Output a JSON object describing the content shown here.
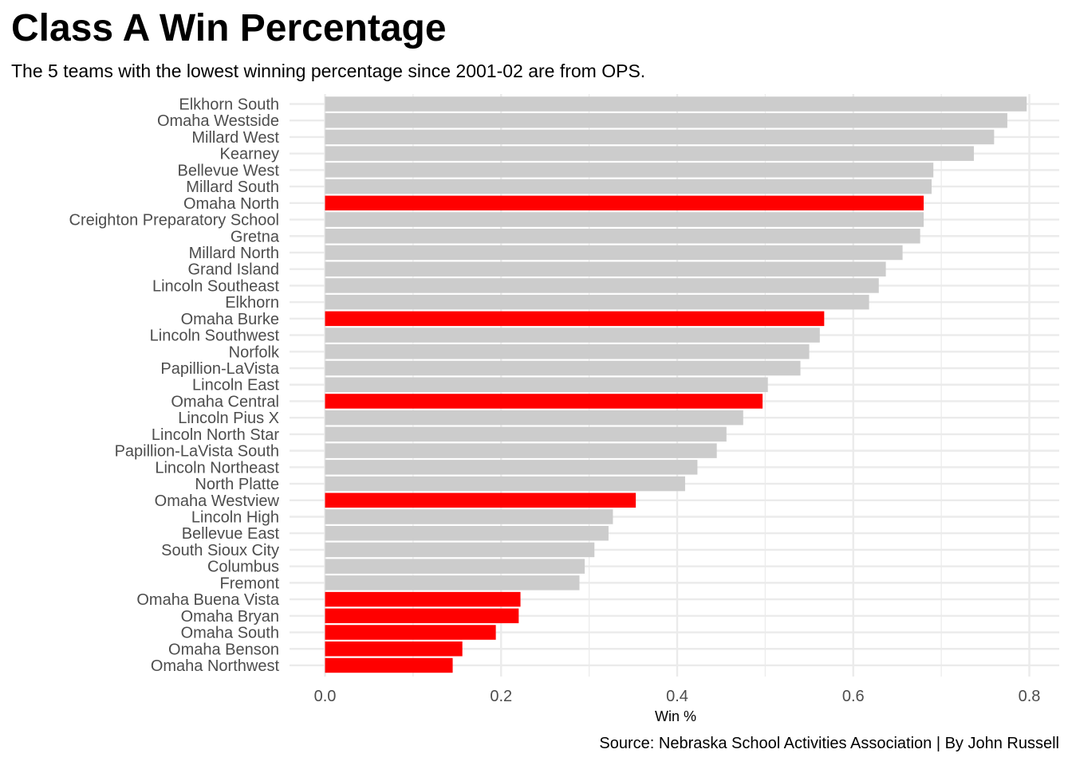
{
  "chart_data": {
    "type": "bar",
    "orientation": "horizontal",
    "title": "Class A Win Percentage",
    "subtitle": "The 5 teams with the lowest winning percentage since 2001-02 are from OPS.",
    "caption": "Source: Nebraska School Activities Association | By John Russell",
    "xlabel": "Win %",
    "ylabel": "",
    "xlim": [
      0,
      0.8
    ],
    "x_ticks": [
      "0.0",
      "0.2",
      "0.4",
      "0.6",
      "0.8"
    ],
    "grid": true,
    "legend": "none",
    "colors": {
      "highlight": "#ff0000",
      "default": "#cccccc",
      "grid": "#ebebeb"
    },
    "categories": [
      "Elkhorn South",
      "Omaha Westside",
      "Millard West",
      "Kearney",
      "Bellevue West",
      "Millard South",
      "Omaha North",
      "Creighton Preparatory School",
      "Gretna",
      "Millard North",
      "Grand Island",
      "Lincoln Southeast",
      "Elkhorn",
      "Omaha Burke",
      "Lincoln Southwest",
      "Norfolk",
      "Papillion-LaVista",
      "Lincoln East",
      "Omaha Central",
      "Lincoln Pius X",
      "Lincoln North Star",
      "Papillion-LaVista South",
      "Lincoln Northeast",
      "North Platte",
      "Omaha Westview",
      "Lincoln High",
      "Bellevue East",
      "South Sioux City",
      "Columbus",
      "Fremont",
      "Omaha Buena Vista",
      "Omaha Bryan",
      "Omaha South",
      "Omaha Benson",
      "Omaha Northwest"
    ],
    "values": [
      0.797,
      0.775,
      0.76,
      0.737,
      0.691,
      0.689,
      0.68,
      0.68,
      0.676,
      0.656,
      0.637,
      0.629,
      0.618,
      0.567,
      0.562,
      0.55,
      0.54,
      0.503,
      0.497,
      0.475,
      0.456,
      0.445,
      0.423,
      0.409,
      0.353,
      0.327,
      0.322,
      0.306,
      0.295,
      0.289,
      0.222,
      0.22,
      0.194,
      0.156,
      0.145
    ],
    "highlighted": [
      "Omaha North",
      "Omaha Burke",
      "Omaha Central",
      "Omaha Westview",
      "Omaha Buena Vista",
      "Omaha Bryan",
      "Omaha South",
      "Omaha Benson",
      "Omaha Northwest"
    ]
  }
}
